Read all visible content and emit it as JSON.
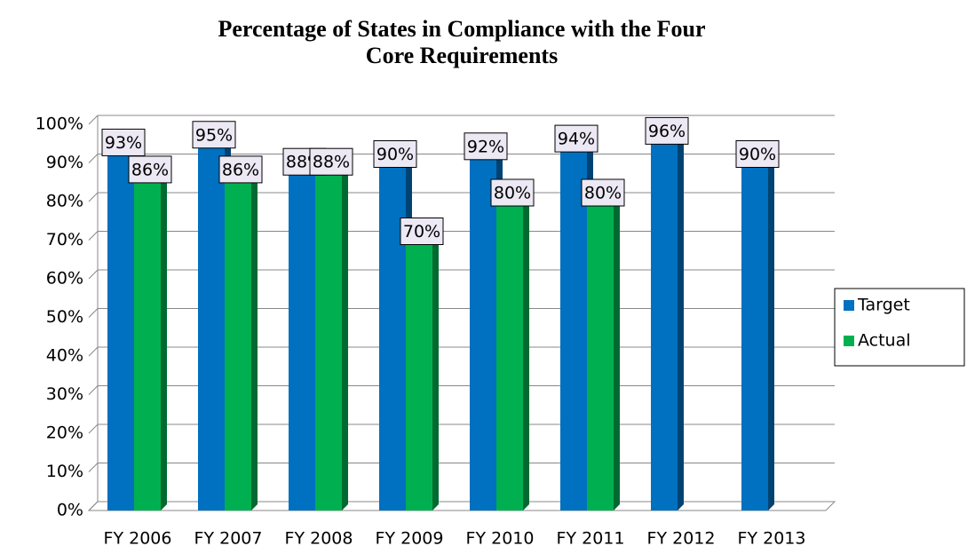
{
  "chart_data": {
    "type": "bar",
    "title": "Percentage of States in Compliance with the Four Core Requirements",
    "categories": [
      "FY 2006",
      "FY 2007",
      "FY 2008",
      "FY 2009",
      "FY 2010",
      "FY 2011",
      "FY 2012",
      "FY 2013"
    ],
    "series": [
      {
        "name": "Target",
        "color": "#0070c0",
        "values": [
          93,
          95,
          88,
          90,
          92,
          94,
          96,
          90
        ],
        "value_labels": [
          "93%",
          "95%",
          "88%",
          "90%",
          "92%",
          "94%",
          "96%",
          "90%"
        ]
      },
      {
        "name": "Actual",
        "color": "#00b050",
        "values": [
          86,
          86,
          88,
          70,
          80,
          80,
          null,
          null
        ],
        "value_labels": [
          "86%",
          "86%",
          "88%",
          "70%",
          "80%",
          "80%",
          null,
          null
        ]
      }
    ],
    "ylim": [
      0,
      100
    ],
    "yticks": [
      {
        "value": 0,
        "label": "0%"
      },
      {
        "value": 10,
        "label": "10%"
      },
      {
        "value": 20,
        "label": "20%"
      },
      {
        "value": 30,
        "label": "30%"
      },
      {
        "value": 40,
        "label": "40%"
      },
      {
        "value": 50,
        "label": "50%"
      },
      {
        "value": 60,
        "label": "60%"
      },
      {
        "value": 70,
        "label": "70%"
      },
      {
        "value": 80,
        "label": "80%"
      },
      {
        "value": 90,
        "label": "90%"
      },
      {
        "value": 100,
        "label": "100%"
      }
    ],
    "grid": true,
    "legend": "right"
  }
}
